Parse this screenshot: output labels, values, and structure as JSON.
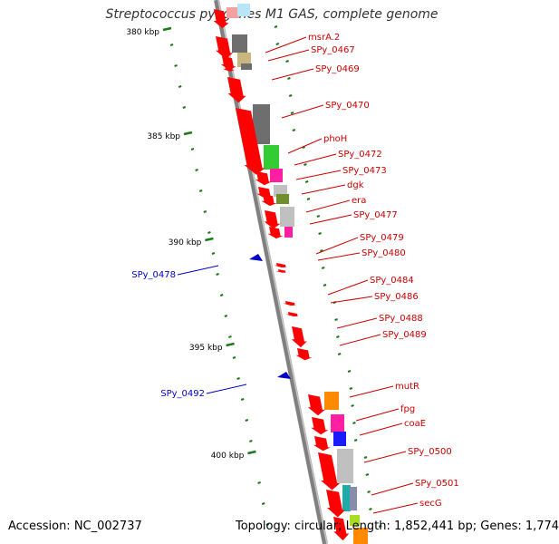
{
  "title": "Streptococcus pyogenes M1 GAS, complete genome",
  "footer": {
    "accession": "Accession: NC_002737",
    "summary": "Topology: circular; Length: 1,852,441 bp; Genes: 1,774"
  },
  "colors": {
    "forward_gene": "#ff0000",
    "reverse_gene": "#0000cc",
    "backbone": "#808080",
    "tick": "#1a7a1a",
    "label_forward": "#cc0000",
    "label_reverse": "#0000cc"
  },
  "scale_labels": [
    "380 kbp",
    "385 kbp",
    "390 kbp",
    "395 kbp",
    "400 kbp"
  ],
  "forward_labels": [
    "msrA.2",
    "SPy_0467",
    "SPy_0469",
    "SPy_0470",
    "phoH",
    "SPy_0472",
    "SPy_0473",
    "dgk",
    "era",
    "SPy_0477",
    "SPy_0479",
    "SPy_0480",
    "SPy_0484",
    "SPy_0486",
    "SPy_0488",
    "SPy_0489",
    "mutR",
    "fpg",
    "coaE",
    "SPy_0500",
    "SPy_0501",
    "secG"
  ],
  "reverse_labels": [
    "SPy_0478",
    "SPy_0492"
  ]
}
